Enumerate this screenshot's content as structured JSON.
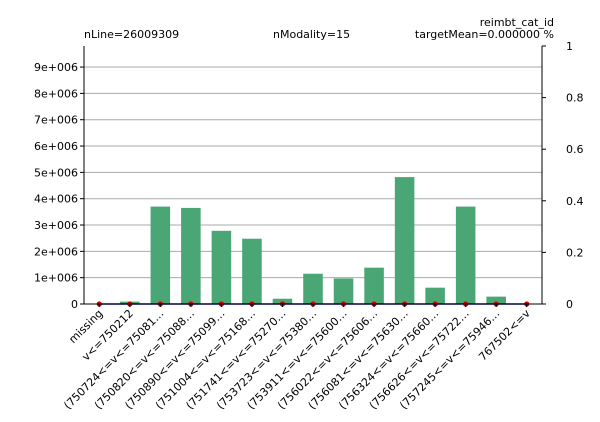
{
  "header": {
    "title": "reimbt_cat_id",
    "nline": "nLine=26009309",
    "nmodality": "nModality=15",
    "target_mean": "targetMean=0.000000 %"
  },
  "chart_data": {
    "type": "bar",
    "categories": [
      "missing",
      "v<=750212",
      "(750724<=v<=75081…",
      "(750820<=v<=75088…",
      "(750890<=v<=75099…",
      "(751004<=v<=75168…",
      "(751741<=v<=75270…",
      "(753723<=v<=75380…",
      "(753911<=v<=75600…",
      "(756022<=v<=75606…",
      "(756081<=v<=75630…",
      "(756324<=v<=75660…",
      "(756626<=v<=75722…",
      "(757245<=v<=75946…",
      "767502<=v"
    ],
    "values": [
      0,
      90000,
      3700000,
      3650000,
      2780000,
      2480000,
      200000,
      1150000,
      970000,
      1380000,
      4820000,
      620000,
      3700000,
      280000,
      15000
    ],
    "target_values": [
      0,
      0,
      0,
      0,
      0,
      0,
      0,
      0,
      0,
      0,
      0,
      0,
      0,
      0,
      0
    ],
    "ylim": [
      0,
      9800000
    ],
    "yticks": [
      0,
      1000000,
      2000000,
      3000000,
      4000000,
      5000000,
      6000000,
      7000000,
      8000000,
      9000000
    ],
    "ytick_labels": [
      "0",
      "1e+006",
      "2e+006",
      "3e+006",
      "4e+006",
      "5e+006",
      "6e+006",
      "7e+006",
      "8e+006",
      "9e+006"
    ],
    "y2lim": [
      0,
      1.0
    ],
    "y2ticks": [
      0,
      0.2,
      0.4,
      0.6,
      0.8,
      1
    ],
    "y2tick_labels": [
      "0",
      "0.2",
      "0.4",
      "0.6",
      "0.8",
      "1"
    ],
    "grid": true,
    "bar_color": "#4aa675",
    "marker_color": "#cc0000",
    "line_color": "#0000cc"
  }
}
